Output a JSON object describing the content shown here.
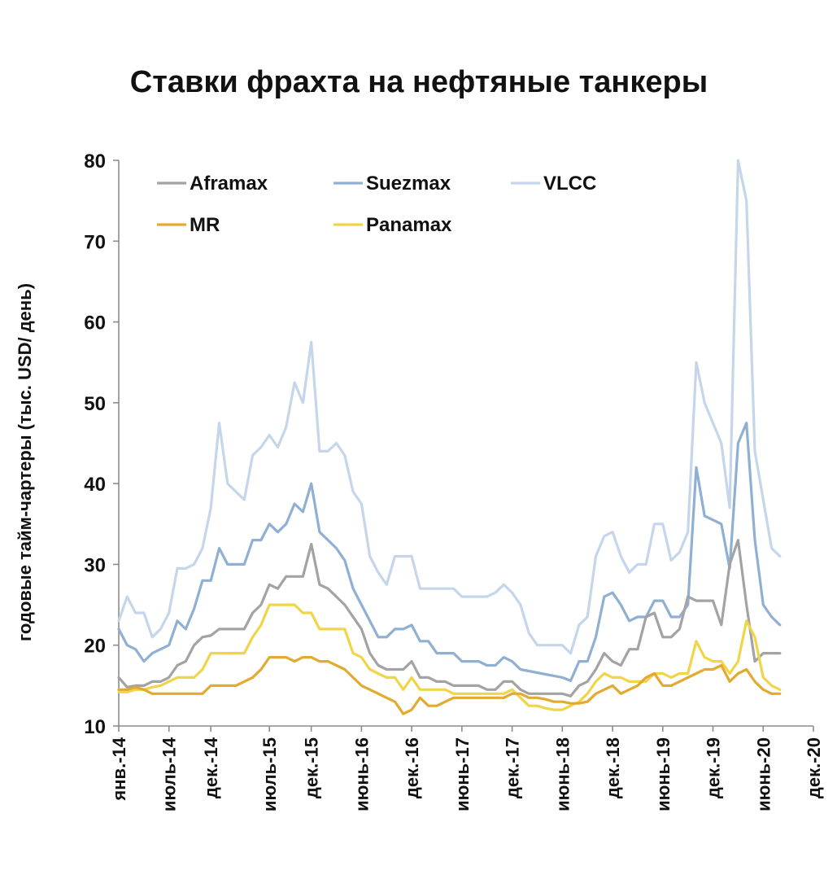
{
  "chart_data": {
    "type": "line",
    "title": "Ставки фрахта на нефтяные танкеры",
    "ylabel": "годовые тайм-чартеры (тыс. USD/ день)",
    "xlabel": "",
    "ylim": [
      10,
      80
    ],
    "yticks": [
      "10",
      "20",
      "30",
      "40",
      "50",
      "60",
      "70",
      "80"
    ],
    "x_tick_labels": [
      "янв.-14",
      "июль-14",
      "дек.-14",
      "июль-15",
      "дек.-15",
      "июнь-16",
      "дек.-16",
      "июнь-17",
      "дек.-17",
      "июнь-18",
      "дек.-18",
      "июнь-19",
      "дек.-19",
      "июнь-20",
      "дек.-20"
    ],
    "x_tick_dates": [
      "2014-01",
      "2014-07",
      "2014-12",
      "2015-07",
      "2015-12",
      "2016-06",
      "2016-12",
      "2017-06",
      "2017-12",
      "2018-06",
      "2018-12",
      "2019-06",
      "2019-12",
      "2020-06",
      "2020-12"
    ],
    "x": [
      "2014-01",
      "2014-02",
      "2014-03",
      "2014-04",
      "2014-05",
      "2014-06",
      "2014-07",
      "2014-08",
      "2014-09",
      "2014-10",
      "2014-11",
      "2014-12",
      "2015-01",
      "2015-02",
      "2015-03",
      "2015-04",
      "2015-05",
      "2015-06",
      "2015-07",
      "2015-08",
      "2015-09",
      "2015-10",
      "2015-11",
      "2015-12",
      "2016-01",
      "2016-02",
      "2016-03",
      "2016-04",
      "2016-05",
      "2016-06",
      "2016-07",
      "2016-08",
      "2016-09",
      "2016-10",
      "2016-11",
      "2016-12",
      "2017-01",
      "2017-02",
      "2017-03",
      "2017-04",
      "2017-05",
      "2017-06",
      "2017-07",
      "2017-08",
      "2017-09",
      "2017-10",
      "2017-11",
      "2017-12",
      "2018-01",
      "2018-02",
      "2018-03",
      "2018-04",
      "2018-05",
      "2018-06",
      "2018-07",
      "2018-08",
      "2018-09",
      "2018-10",
      "2018-11",
      "2018-12",
      "2019-01",
      "2019-02",
      "2019-03",
      "2019-04",
      "2019-05",
      "2019-06",
      "2019-07",
      "2019-08",
      "2019-09",
      "2019-10",
      "2019-11",
      "2019-12",
      "2020-01",
      "2020-02",
      "2020-03",
      "2020-04",
      "2020-05",
      "2020-06",
      "2020-07",
      "2020-08"
    ],
    "series": [
      {
        "name": "VLCC",
        "color": "#c5d6ea",
        "values": [
          23,
          26,
          24,
          24,
          21,
          22,
          24,
          29.5,
          29.5,
          30,
          32,
          37,
          47.5,
          40,
          39,
          38,
          43.5,
          44.5,
          46,
          44.5,
          47,
          52.5,
          50,
          57.5,
          44,
          44,
          45,
          43.5,
          39,
          37.5,
          31,
          29,
          27.5,
          31,
          31,
          31,
          27,
          27,
          27,
          27,
          27,
          26,
          26,
          26,
          26,
          26.5,
          27.5,
          26.5,
          25,
          21.5,
          20,
          20,
          20,
          20,
          19,
          22.5,
          23.5,
          31,
          33.5,
          34,
          31,
          29,
          30,
          30,
          35,
          35,
          30.5,
          31.5,
          34,
          55,
          50,
          47.5,
          45,
          37,
          80,
          75,
          44,
          38,
          32,
          31
        ]
      },
      {
        "name": "Suezmax",
        "color": "#8fb0d3",
        "values": [
          22,
          20,
          19.5,
          18,
          19,
          19.5,
          20,
          23,
          22,
          24.5,
          28,
          28,
          32,
          30,
          30,
          30,
          33,
          33,
          35,
          34,
          35,
          37.5,
          36.5,
          40,
          34,
          33,
          32,
          30.5,
          27,
          25,
          23,
          21,
          21,
          22,
          22,
          22.5,
          20.5,
          20.5,
          19,
          19,
          19,
          18,
          18,
          18,
          17.5,
          17.5,
          18.5,
          18,
          17,
          16.8,
          16.6,
          16.4,
          16.2,
          16,
          15.6,
          18,
          18,
          21,
          26,
          26.5,
          25,
          23,
          23.5,
          23.5,
          25.5,
          25.5,
          23.5,
          23.5,
          25,
          42,
          36,
          35.5,
          35,
          29.5,
          45,
          47.5,
          33,
          25,
          23.5,
          22.5
        ]
      },
      {
        "name": "Aframax",
        "color": "#a3a3a3",
        "values": [
          16,
          14.8,
          15,
          15,
          15.5,
          15.5,
          16,
          17.5,
          18,
          20,
          21,
          21.2,
          22,
          22,
          22,
          22,
          24,
          25,
          27.5,
          27,
          28.5,
          28.5,
          28.5,
          32.5,
          27.5,
          27,
          26,
          25,
          23.5,
          22,
          19,
          17.5,
          17,
          17,
          17,
          18,
          16,
          16,
          15.5,
          15.5,
          15,
          15,
          15,
          15,
          14.5,
          14.5,
          15.5,
          15.5,
          14.5,
          14,
          14,
          14,
          14,
          14,
          13.7,
          15,
          15.5,
          17,
          19,
          18,
          17.5,
          19.5,
          19.5,
          23.5,
          24,
          21,
          21,
          22,
          26,
          25.5,
          25.5,
          25.5,
          22.5,
          30,
          33,
          25,
          18,
          19,
          19,
          19
        ]
      },
      {
        "name": "Panamax",
        "color": "#f1d548",
        "values": [
          14.2,
          14.2,
          14.5,
          14.5,
          14.8,
          15,
          15.5,
          16,
          16,
          16,
          17,
          19,
          19,
          19,
          19,
          19,
          21,
          22.5,
          25,
          25,
          25,
          25,
          24,
          24,
          22,
          22,
          22,
          22,
          19,
          18.5,
          17,
          16.5,
          16,
          16,
          14.5,
          16,
          14.5,
          14.5,
          14.5,
          14.5,
          14,
          14,
          14,
          14,
          14,
          14,
          14,
          14.5,
          13.5,
          12.5,
          12.5,
          12.2,
          12,
          12,
          12.5,
          13,
          14,
          15.5,
          16.5,
          16,
          16,
          15.5,
          15.5,
          15.5,
          16.5,
          16.5,
          16,
          16.5,
          16.5,
          20.5,
          18.5,
          18,
          18,
          16.5,
          18,
          23,
          21,
          16,
          15,
          14.5
        ]
      },
      {
        "name": "MR",
        "color": "#e2aa2f",
        "values": [
          14.5,
          14.5,
          14.8,
          14.5,
          14,
          14,
          14,
          14,
          14,
          14,
          14,
          15,
          15,
          15,
          15,
          15.5,
          16,
          17,
          18.5,
          18.5,
          18.5,
          18,
          18.5,
          18.5,
          18,
          18,
          17.5,
          17,
          16,
          15,
          14.5,
          14,
          13.5,
          13,
          11.5,
          12,
          13.5,
          12.5,
          12.5,
          13,
          13.5,
          13.5,
          13.5,
          13.5,
          13.5,
          13.5,
          13.5,
          14,
          14,
          13.5,
          13.5,
          13.3,
          13,
          13,
          12.8,
          12.8,
          13,
          14,
          14.5,
          15,
          14,
          14.5,
          15,
          16,
          16.5,
          15,
          15,
          15.5,
          16,
          16.5,
          17,
          17,
          17.5,
          15.5,
          16.5,
          17,
          15.5,
          14.5,
          14,
          14
        ]
      }
    ],
    "legend": {
      "placement": "top-left",
      "order": [
        "Aframax",
        "Suezmax",
        "VLCC",
        "MR",
        "Panamax"
      ],
      "labels": [
        "Aframax",
        "Suezmax",
        "VLCC",
        "MR",
        "Panamax"
      ]
    },
    "grid": false
  }
}
